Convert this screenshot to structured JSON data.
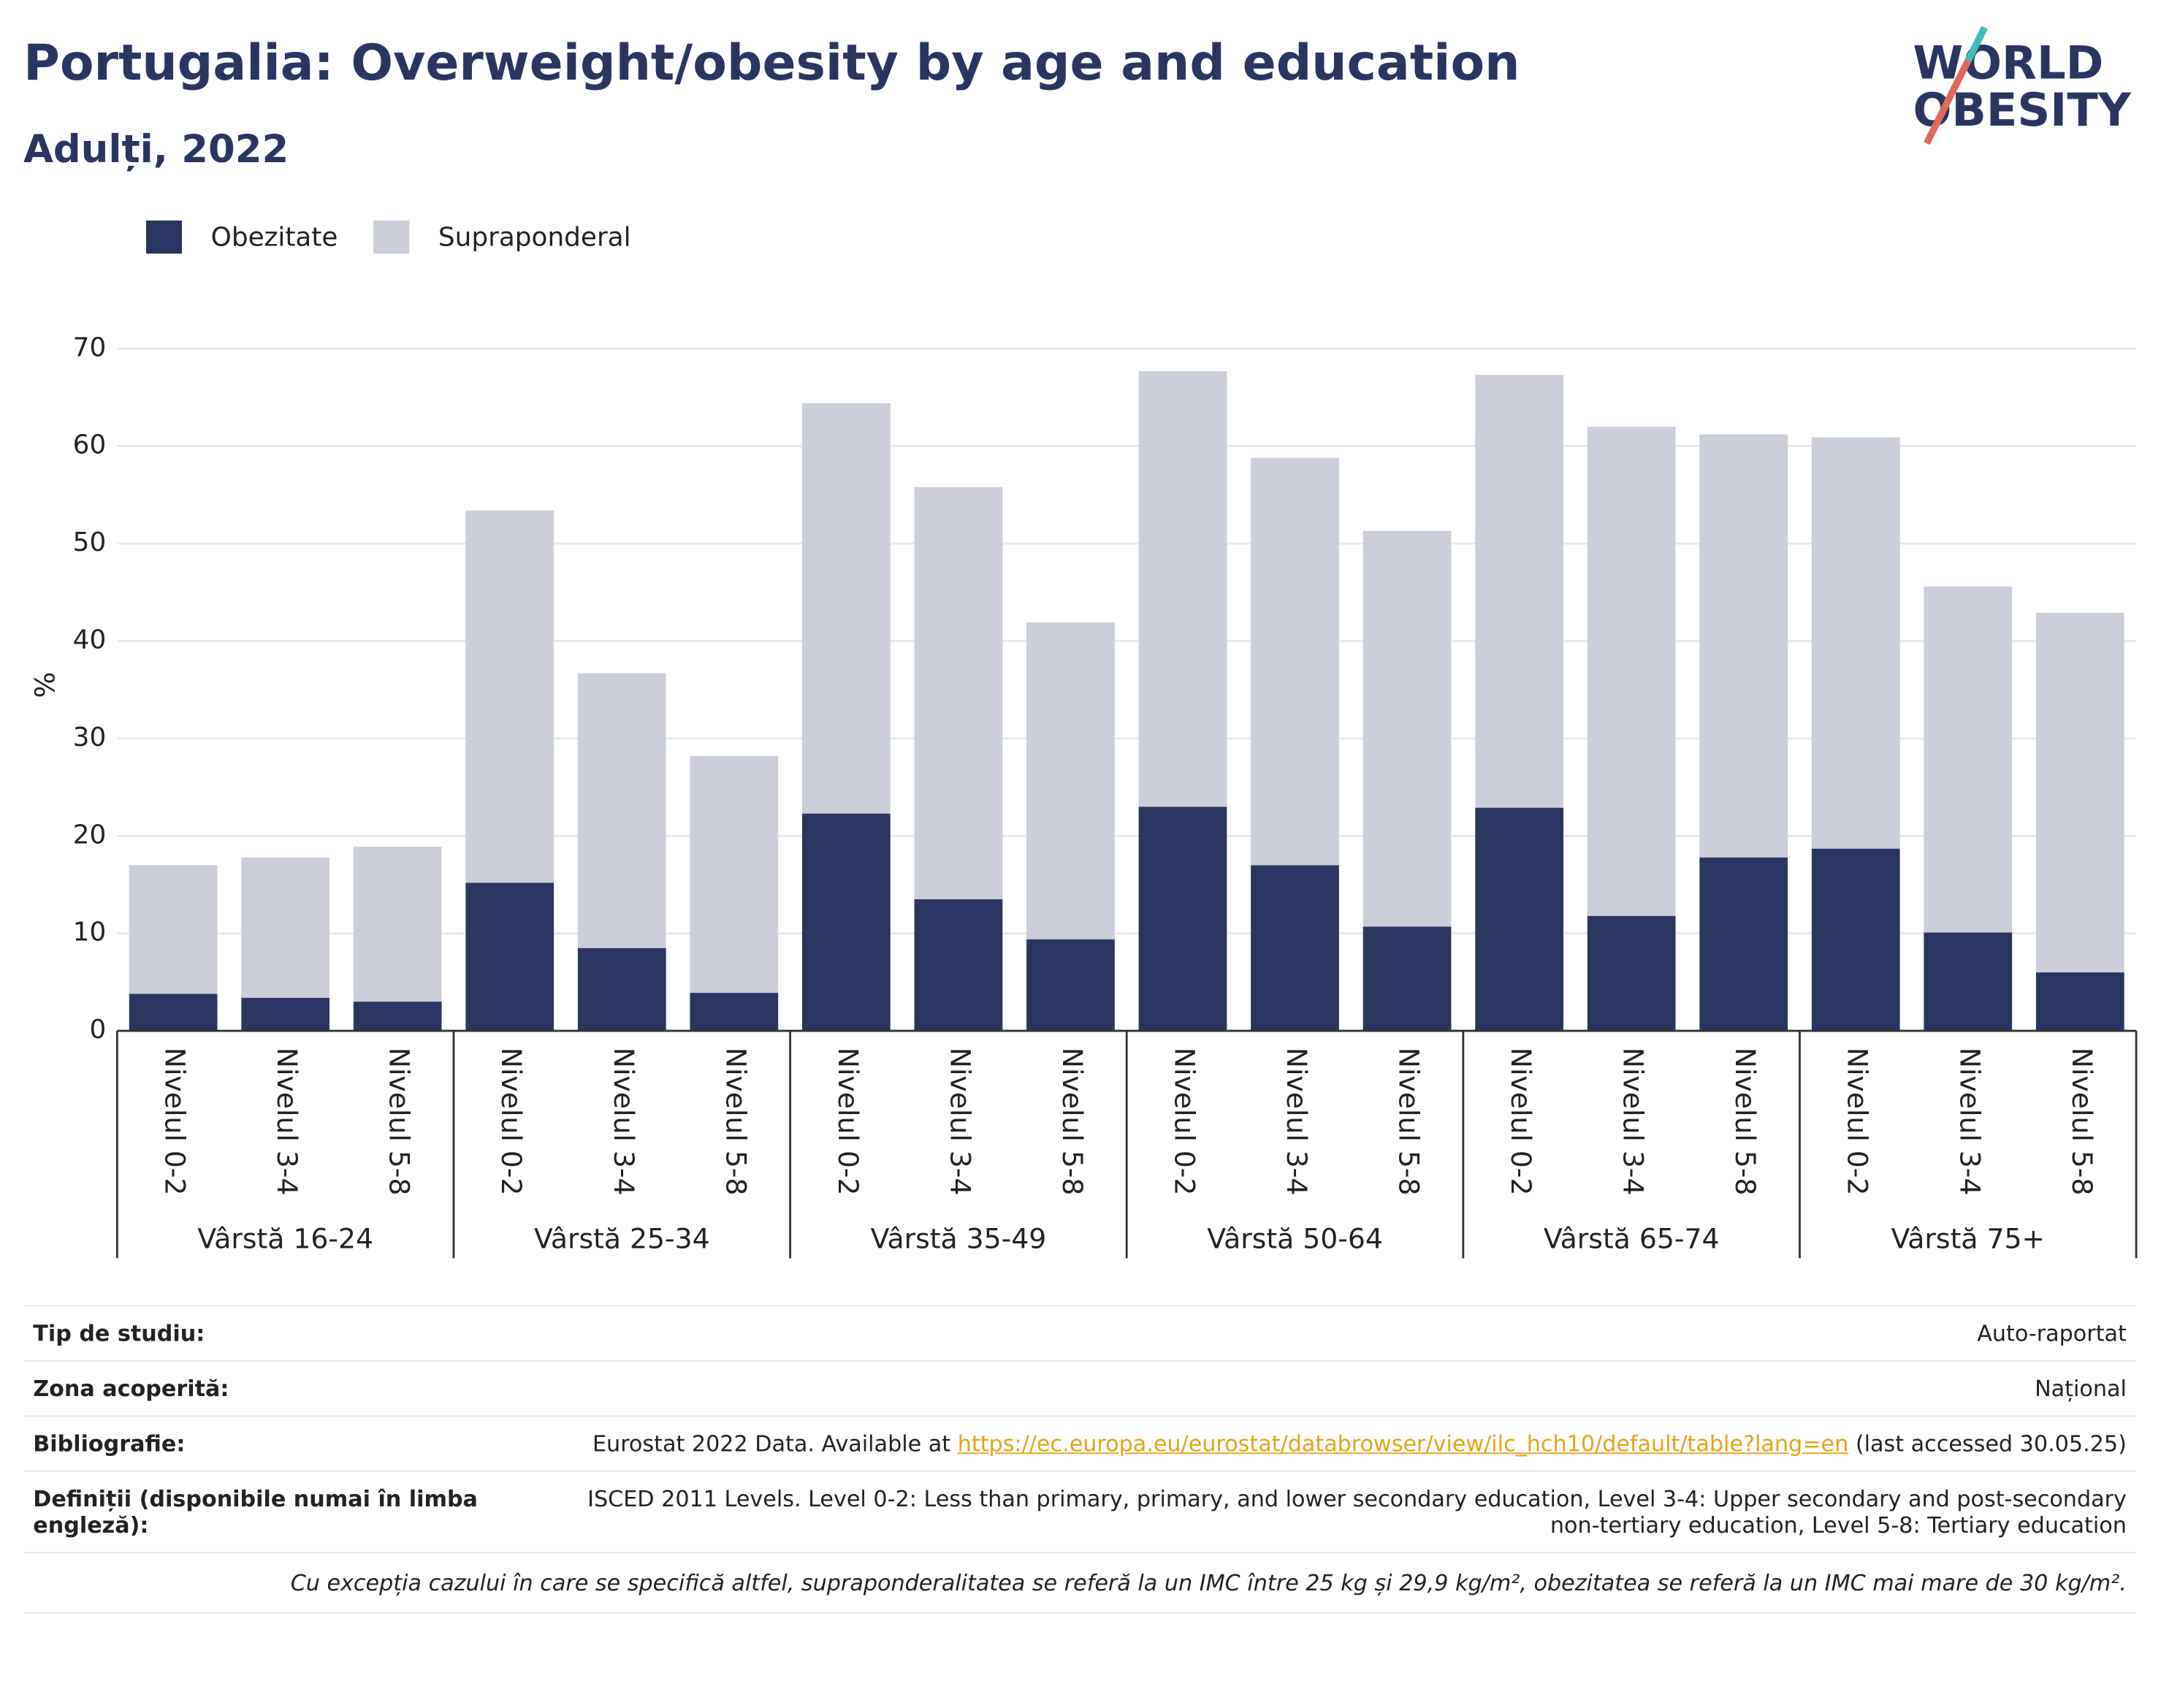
{
  "logo": [
    "WORLD",
    "OBESITY"
  ],
  "chart_data": {
    "type": "bar",
    "stacked": true,
    "title": "Portugalia: Overweight/obesity by age and education",
    "subtitle": "Adulți, 2022",
    "y_label": "%",
    "groups": [
      {
        "name": "Vârstă 16-24",
        "categories": [
          "Nivelul 0-2",
          "Nivelul 3-4",
          "Nivelul 5-8"
        ]
      },
      {
        "name": "Vârstă 25-34",
        "categories": [
          "Nivelul 0-2",
          "Nivelul 3-4",
          "Nivelul 5-8"
        ]
      },
      {
        "name": "Vârstă 35-49",
        "categories": [
          "Nivelul 0-2",
          "Nivelul 3-4",
          "Nivelul 5-8"
        ]
      },
      {
        "name": "Vârstă 50-64",
        "categories": [
          "Nivelul 0-2",
          "Nivelul 3-4",
          "Nivelul 5-8"
        ]
      },
      {
        "name": "Vârstă 65-74",
        "categories": [
          "Nivelul 0-2",
          "Nivelul 3-4",
          "Nivelul 5-8"
        ]
      },
      {
        "name": "Vârstă 75+",
        "categories": [
          "Nivelul 0-2",
          "Nivelul 3-4",
          "Nivelul 5-8"
        ]
      }
    ],
    "series": [
      {
        "name": "Obezitate",
        "color": "#2a3561",
        "values": [
          3.8,
          3.4,
          3.0,
          15.2,
          8.5,
          3.9,
          22.3,
          13.5,
          9.4,
          23.0,
          17.0,
          10.7,
          22.9,
          11.8,
          17.8,
          18.7,
          10.1,
          6.0
        ]
      },
      {
        "name": "Supraponderal",
        "color": "#cbcdd9",
        "values": [
          13.2,
          14.4,
          15.9,
          38.2,
          28.2,
          24.3,
          42.1,
          42.3,
          32.5,
          44.7,
          41.8,
          40.6,
          44.4,
          50.2,
          43.4,
          42.2,
          35.5,
          36.9
        ]
      }
    ],
    "ylim": [
      0,
      70
    ],
    "yticks": [
      0,
      10,
      20,
      30,
      40,
      50,
      60,
      70
    ],
    "grid": true,
    "legend": "top-left"
  },
  "footer": {
    "rows": [
      {
        "label": "Tip de studiu:",
        "value": "Auto-raportat"
      },
      {
        "label": "Zona acoperită:",
        "value": "Național"
      },
      {
        "label": "Bibliografie:",
        "text": "Eurostat 2022 Data. Available at",
        "link": "https://ec.europa.eu/eurostat/databrowser/view/ilc_hch10/default/table?lang=en",
        "suffix": "(last accessed 30.05.25)"
      },
      {
        "label": "Definiții (disponibile numai în limba engleză):",
        "value": "ISCED 2011 Levels. Level 0-2: Less than primary, primary, and lower secondary education, Level 3-4: Upper secondary and post-secondary non-tertiary education, Level 5-8: Tertiary education"
      }
    ],
    "note": "Cu excepția cazului în care se specifică altfel, supraponderalitatea se referă la un IMC între 25 kg și 29,9 kg/m², obezitatea se referă la un IMC mai mare de 30 kg/m²."
  }
}
